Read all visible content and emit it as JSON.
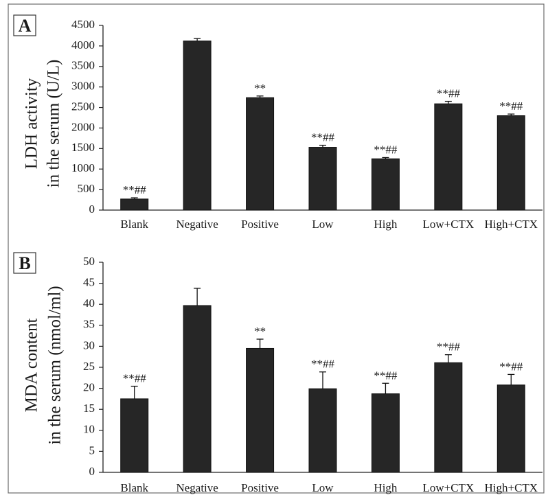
{
  "chart_data": [
    {
      "type": "bar",
      "panel_label": "A",
      "ylabel_lines": [
        "LDH activity",
        "in the serum (U/L)"
      ],
      "categories": [
        "Blank",
        "Negative",
        "Positive",
        "Low",
        "High",
        "Low+CTX",
        "High+CTX"
      ],
      "values": [
        270,
        4120,
        2740,
        1530,
        1250,
        2590,
        2300
      ],
      "errors": [
        30,
        60,
        40,
        50,
        30,
        60,
        40
      ],
      "annotations": [
        "**##",
        "",
        "**",
        "**##",
        "**##",
        "**##",
        "**##"
      ],
      "yticks": [
        0,
        500,
        1000,
        1500,
        2000,
        2500,
        3000,
        3500,
        4000,
        4500
      ],
      "ylim": [
        0,
        4500
      ],
      "bar_color": "#262626",
      "grid": false
    },
    {
      "type": "bar",
      "panel_label": "B",
      "ylabel_lines": [
        "MDA content",
        "in the serum (nmol/ml)"
      ],
      "categories": [
        "Blank",
        "Negative",
        "Positive",
        "Low",
        "High",
        "Low+CTX",
        "High+CTX"
      ],
      "values": [
        17.5,
        39.7,
        29.5,
        19.9,
        18.7,
        26.1,
        20.8
      ],
      "errors": [
        3.0,
        4.1,
        2.2,
        4.0,
        2.5,
        1.9,
        2.5
      ],
      "annotations": [
        "**##",
        "",
        "**",
        "**##",
        "**##",
        "**##",
        "**##"
      ],
      "yticks": [
        0,
        5,
        10,
        15,
        20,
        25,
        30,
        35,
        40,
        45,
        50
      ],
      "ylim": [
        0,
        50
      ],
      "bar_color": "#262626",
      "grid": false
    }
  ]
}
